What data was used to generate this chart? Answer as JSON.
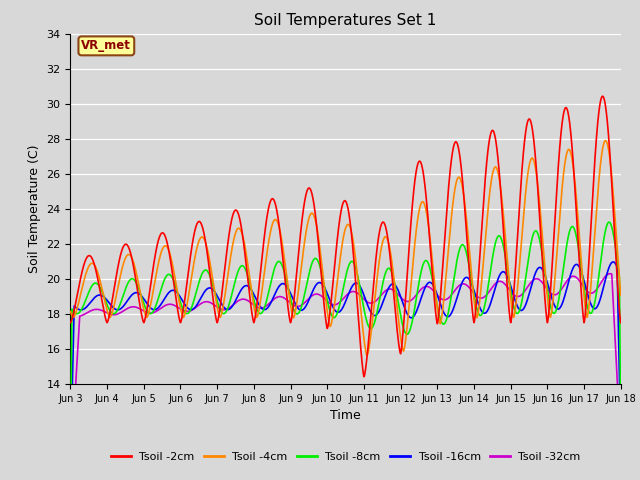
{
  "title": "Soil Temperatures Set 1",
  "xlabel": "Time",
  "ylabel": "Soil Temperature (C)",
  "ylim": [
    14,
    34
  ],
  "background_color": "#d8d8d8",
  "plot_bg_color": "#d8d8d8",
  "annotation_text": "VR_met",
  "annotation_bg": "#ffff99",
  "annotation_border": "#8b4513",
  "annotation_text_color": "#8b0000",
  "series_colors": {
    "2cm": "#ff0000",
    "4cm": "#ff8800",
    "8cm": "#00ee00",
    "16cm": "#0000ff",
    "32cm": "#cc00cc"
  },
  "legend_labels": [
    "Tsoil -2cm",
    "Tsoil -4cm",
    "Tsoil -8cm",
    "Tsoil -16cm",
    "Tsoil -32cm"
  ],
  "xtick_labels": [
    "Jun 3",
    "Jun 4",
    "Jun 5",
    "Jun 6",
    "Jun 7",
    "Jun 8",
    "Jun 9",
    "Jun 10",
    "Jun 11",
    "Jun 12",
    "Jun 13",
    "Jun 14",
    "Jun 15",
    "Jun 16",
    "Jun 17",
    "Jun 18"
  ],
  "ytick_values": [
    14,
    16,
    18,
    20,
    22,
    24,
    26,
    28,
    30,
    32,
    34
  ]
}
